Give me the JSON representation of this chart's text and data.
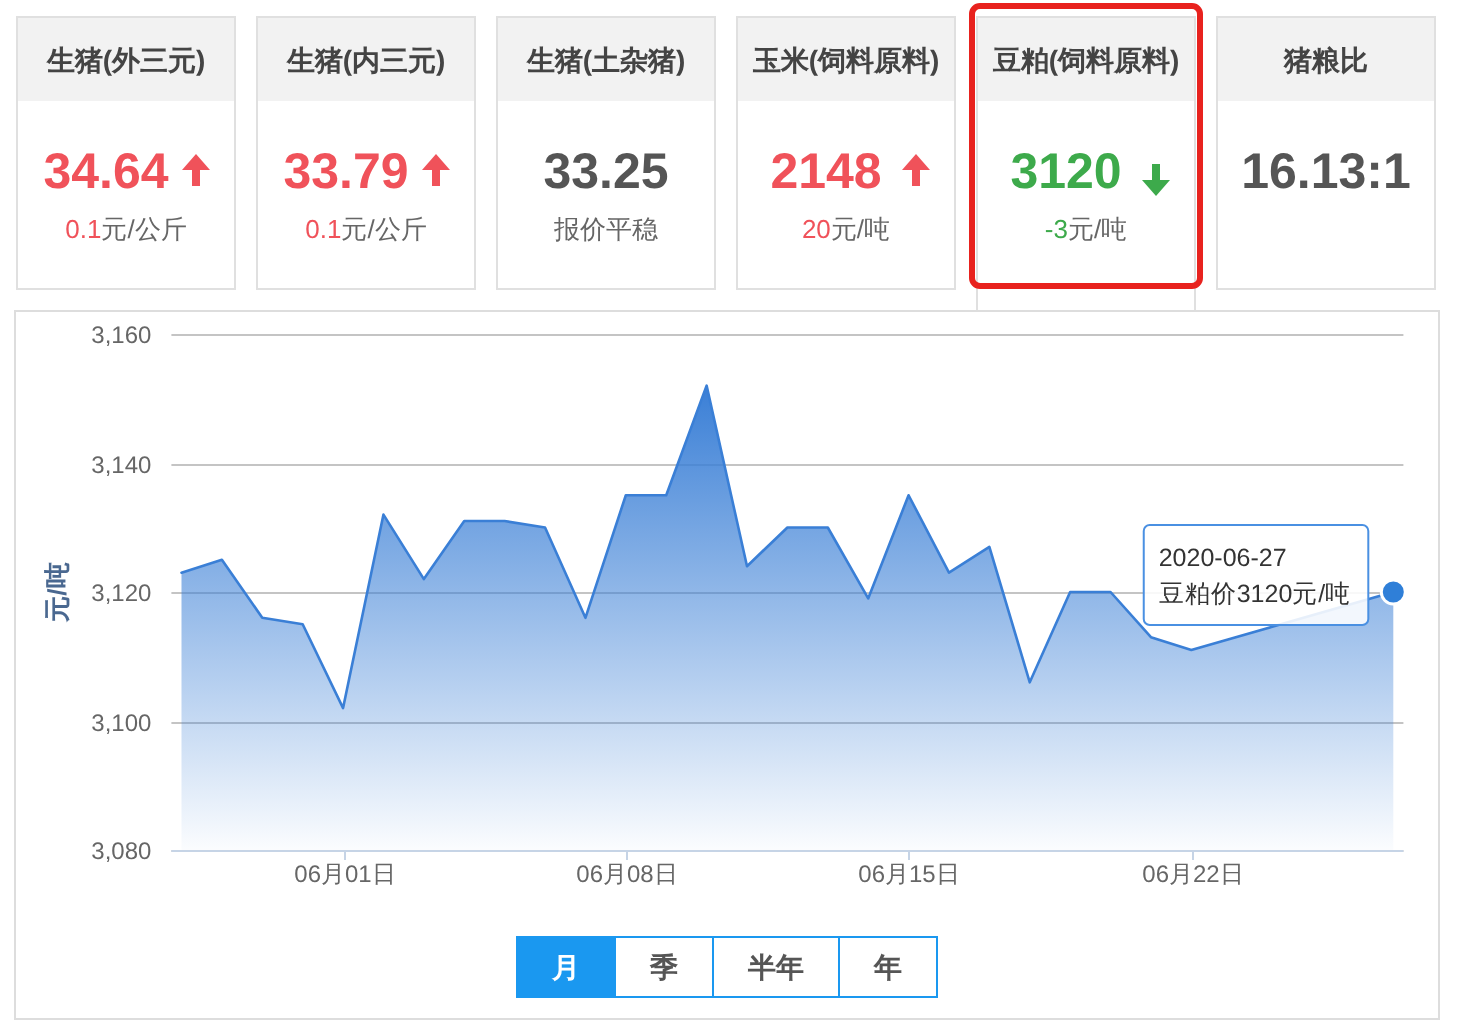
{
  "chart_data": [
    {
      "type": "other",
      "categories": [
        "生猪(外三元)",
        "生猪(内三元)",
        "生猪(土杂猪)",
        "玉米(饲料原料)",
        "豆粕(饲料原料)",
        "猪粮比"
      ],
      "series": [
        {
          "values": [
            34.64,
            33.79,
            33.25,
            2148,
            3120,
            16.13
          ],
          "value_labels": [
            "34.64",
            "33.79",
            "33.25",
            "2148",
            "3120",
            "16.13:1"
          ],
          "colors": [
            "#f0525a",
            "#f0525a",
            "#555555",
            "#f0525a",
            "#3daa4b",
            "#555555"
          ]
        },
        {
          "values": [
            0.1,
            0.1,
            null,
            20,
            -3,
            null
          ],
          "value_labels": [
            "0.1元/公斤",
            "0.1元/公斤",
            "报价平稳",
            "20元/吨",
            "-3元/吨",
            null
          ]
        }
      ]
    },
    {
      "type": "area",
      "color": "#3a7fd6",
      "x": [
        "2020-05-28",
        "2020-05-29",
        "2020-05-30",
        "2020-05-31",
        "2020-06-01",
        "2020-06-02",
        "2020-06-03",
        "2020-06-04",
        "2020-06-05",
        "2020-06-06",
        "2020-06-07",
        "2020-06-08",
        "2020-06-09",
        "2020-06-10",
        "2020-06-11",
        "2020-06-12",
        "2020-06-13",
        "2020-06-14",
        "2020-06-15",
        "2020-06-16",
        "2020-06-17",
        "2020-06-18",
        "2020-06-19",
        "2020-06-20",
        "2020-06-21",
        "2020-06-22",
        "2020-06-27"
      ],
      "values": [
        3123,
        3125,
        3116,
        3115,
        3102,
        3132,
        3122,
        3131,
        3131,
        3130,
        3116,
        3135,
        3135,
        3152,
        3124,
        3130,
        3130,
        3119,
        3135,
        3123,
        3127,
        3106,
        3120,
        3120,
        3113,
        3111,
        3120
      ],
      "xlim": [
        "2020-05-27T18:00",
        "2020-06-27T06:00"
      ],
      "xticks": [
        {
          "value": "2020-06-01",
          "label": "06月01日"
        },
        {
          "value": "2020-06-08",
          "label": "06月08日"
        },
        {
          "value": "2020-06-15",
          "label": "06月15日"
        },
        {
          "value": "2020-06-22",
          "label": "06月22日"
        }
      ],
      "ylim": [
        3080,
        3160
      ],
      "yticks": [
        {
          "value": 3080,
          "label": "3,080"
        },
        {
          "value": 3100,
          "label": "3,100"
        },
        {
          "value": 3120,
          "label": "3,120"
        },
        {
          "value": 3140,
          "label": "3,140"
        },
        {
          "value": 3160,
          "label": "3,160"
        }
      ],
      "ylabel": "元/吨",
      "grid": "y",
      "annotations": [
        {
          "text": "2020-06-27\n豆粕价3120元/吨",
          "x": "2020-06-27",
          "y": 3120
        },
        "月",
        "季",
        "半年",
        "年"
      ]
    }
  ]
}
